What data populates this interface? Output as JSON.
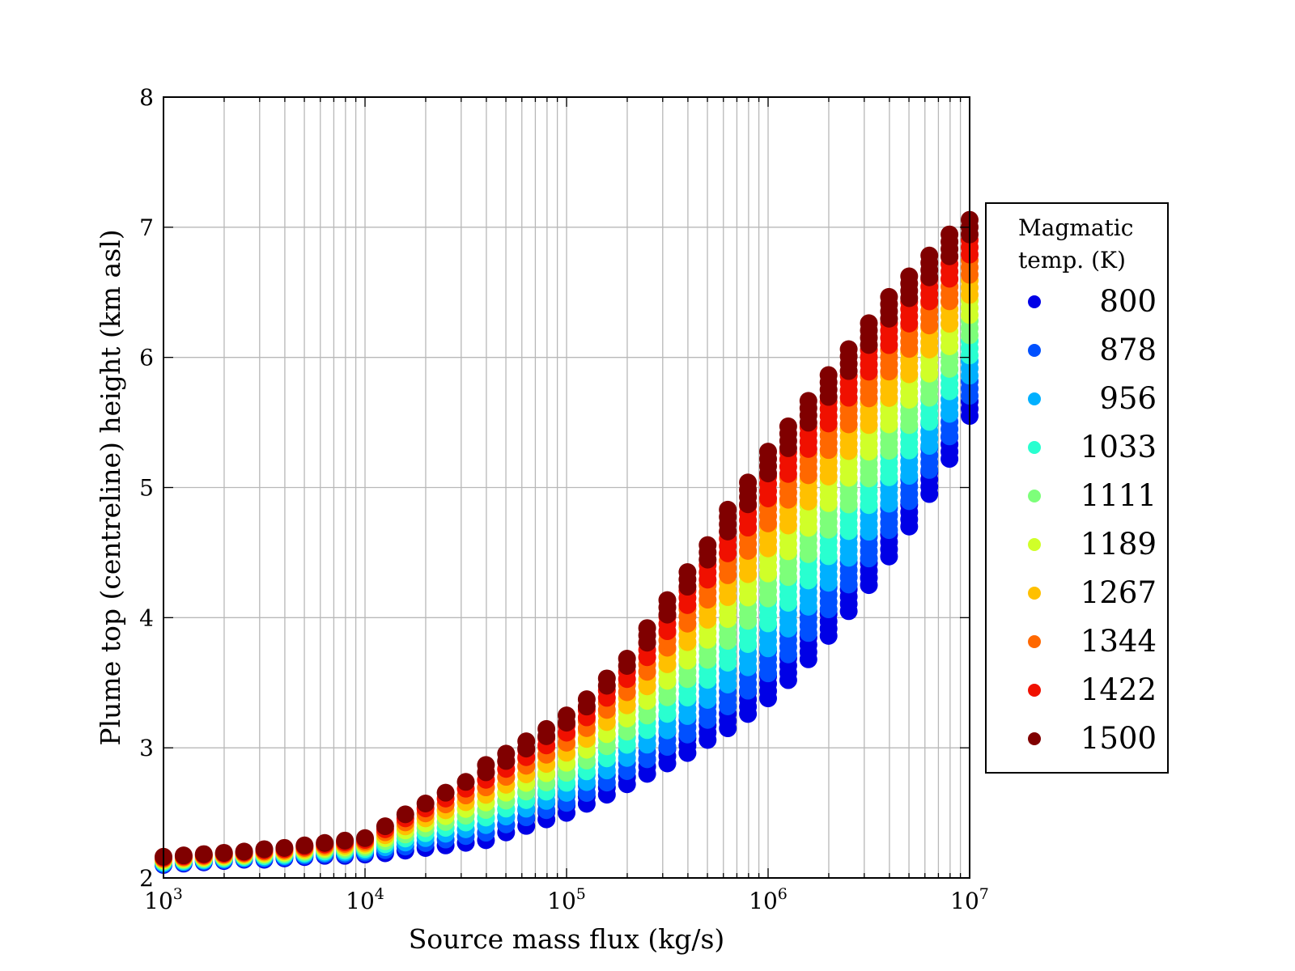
{
  "chart_data": {
    "type": "scatter",
    "xscale": "log",
    "xlabel": "Source mass flux (kg/s)",
    "ylabel": "Plume top (centreline) height (km asl)",
    "xlim": [
      1000,
      10000000
    ],
    "ylim": [
      2,
      8
    ],
    "x_ticks": [
      {
        "base": "10",
        "exp": "3",
        "value": 1000
      },
      {
        "base": "10",
        "exp": "4",
        "value": 10000
      },
      {
        "base": "10",
        "exp": "5",
        "value": 100000
      },
      {
        "base": "10",
        "exp": "6",
        "value": 1000000
      },
      {
        "base": "10",
        "exp": "7",
        "value": 10000000
      }
    ],
    "y_ticks": [
      "2",
      "3",
      "4",
      "5",
      "6",
      "7",
      "8"
    ],
    "grid": true,
    "legend_position": "outside-right",
    "legend_title_lines": [
      "Magmatic",
      "temp. (K)"
    ],
    "x_points_log10": [
      3.0,
      3.1,
      3.2,
      3.3,
      3.4,
      3.5,
      3.6,
      3.7,
      3.8,
      3.9,
      4.0,
      4.1,
      4.2,
      4.3,
      4.4,
      4.5,
      4.6,
      4.7,
      4.8,
      4.9,
      5.0,
      5.1,
      5.2,
      5.3,
      5.4,
      5.5,
      5.6,
      5.7,
      5.8,
      5.9,
      6.0,
      6.1,
      6.2,
      6.3,
      6.4,
      6.5,
      6.6,
      6.7,
      6.8,
      6.9,
      7.0
    ],
    "series": [
      {
        "name": "800",
        "color": "#0000e6",
        "low": [
          2.1,
          2.11,
          2.12,
          2.13,
          2.14,
          2.14,
          2.15,
          2.16,
          2.17,
          2.17,
          2.18,
          2.19,
          2.21,
          2.23,
          2.25,
          2.27,
          2.29,
          2.35,
          2.4,
          2.45,
          2.5,
          2.57,
          2.64,
          2.72,
          2.8,
          2.88,
          2.96,
          3.06,
          3.15,
          3.26,
          3.38,
          3.52,
          3.68,
          3.86,
          4.05,
          4.25,
          4.47,
          4.7,
          4.95,
          5.22,
          5.55
        ],
        "high": [
          2.17,
          2.18,
          2.19,
          2.2,
          2.21,
          2.23,
          2.24,
          2.26,
          2.28,
          2.3,
          2.32,
          2.42,
          2.52,
          2.61,
          2.7,
          2.79,
          2.87,
          2.96,
          3.06,
          3.16,
          3.27,
          3.4,
          3.57,
          3.73,
          3.92,
          4.15,
          4.38,
          4.6,
          4.83,
          5.05,
          5.3,
          5.5,
          5.7,
          5.9,
          6.1,
          6.3,
          6.5,
          6.65,
          6.8,
          6.95,
          7.1
        ]
      },
      {
        "name": "878",
        "color": "#0050ff"
      },
      {
        "name": "956",
        "color": "#00b0ff"
      },
      {
        "name": "1033",
        "color": "#29ffd0"
      },
      {
        "name": "1111",
        "color": "#7dff7a"
      },
      {
        "name": "1189",
        "color": "#d0ff29"
      },
      {
        "name": "1267",
        "color": "#ffc000"
      },
      {
        "name": "1344",
        "color": "#ff6800"
      },
      {
        "name": "1422",
        "color": "#f01000"
      },
      {
        "name": "1500",
        "color": "#800000"
      }
    ]
  }
}
